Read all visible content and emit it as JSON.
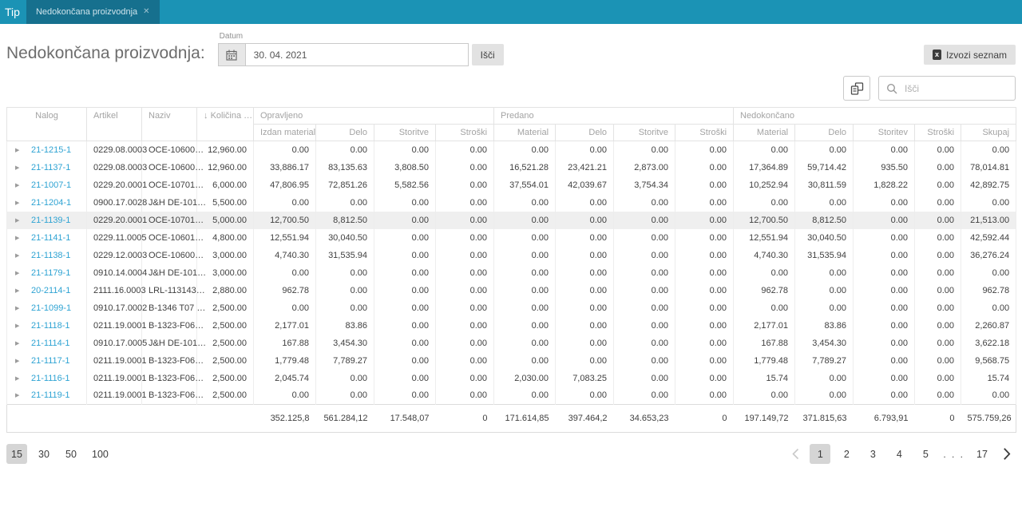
{
  "topbar": {
    "app_name": "Tip",
    "tab": {
      "label": "Nedokončana proizvodnja",
      "close_icon": "✕"
    }
  },
  "header": {
    "title": "Nedokončana proizvodnja:",
    "date_label": "Datum",
    "date_value": "30. 04. 2021",
    "search_button_label": "Išči",
    "export_button_label": "Izvozi seznam",
    "export_icon": "x"
  },
  "toolbar": {
    "search_placeholder": "Išči",
    "column_chooser_icon": "column-chooser-icon",
    "search_icon": "magnifier-icon"
  },
  "table": {
    "fixed_columns": [
      {
        "label": "Nalog"
      },
      {
        "label": "Artikel"
      },
      {
        "label": "Naziv"
      },
      {
        "label": "Količina …",
        "sort_icon": "↓"
      }
    ],
    "groups": [
      {
        "label": "Opravljeno",
        "columns": [
          "Izdan material",
          "Delo",
          "Storitve",
          "Stroški"
        ]
      },
      {
        "label": "Predano",
        "columns": [
          "Material",
          "Delo",
          "Storitve",
          "Stroški"
        ]
      },
      {
        "label": "Nedokončano",
        "columns": [
          "Material",
          "Delo",
          "Storitev",
          "Stroški",
          "Skupaj"
        ]
      }
    ],
    "expand_icon": "▶",
    "rows": [
      {
        "nalog": "21-1215-1",
        "artikel": "0229.08.0003",
        "naziv": "OCE-10600…",
        "kolicina": "12,960.00",
        "highlighted": false,
        "values": [
          "0.00",
          "0.00",
          "0.00",
          "0.00",
          "0.00",
          "0.00",
          "0.00",
          "0.00",
          "0.00",
          "0.00",
          "0.00",
          "0.00",
          "0.00"
        ]
      },
      {
        "nalog": "21-1137-1",
        "artikel": "0229.08.0003",
        "naziv": "OCE-10600…",
        "kolicina": "12,960.00",
        "highlighted": false,
        "values": [
          "33,886.17",
          "83,135.63",
          "3,808.50",
          "0.00",
          "16,521.28",
          "23,421.21",
          "2,873.00",
          "0.00",
          "17,364.89",
          "59,714.42",
          "935.50",
          "0.00",
          "78,014.81"
        ]
      },
      {
        "nalog": "21-1007-1",
        "artikel": "0229.20.0001",
        "naziv": "OCE-10701…",
        "kolicina": "6,000.00",
        "highlighted": false,
        "values": [
          "47,806.95",
          "72,851.26",
          "5,582.56",
          "0.00",
          "37,554.01",
          "42,039.67",
          "3,754.34",
          "0.00",
          "10,252.94",
          "30,811.59",
          "1,828.22",
          "0.00",
          "42,892.75"
        ]
      },
      {
        "nalog": "21-1204-1",
        "artikel": "0900.17.0028",
        "naziv": "J&H DE-101…",
        "kolicina": "5,500.00",
        "highlighted": false,
        "values": [
          "0.00",
          "0.00",
          "0.00",
          "0.00",
          "0.00",
          "0.00",
          "0.00",
          "0.00",
          "0.00",
          "0.00",
          "0.00",
          "0.00",
          "0.00"
        ]
      },
      {
        "nalog": "21-1139-1",
        "artikel": "0229.20.0001",
        "naziv": "OCE-10701…",
        "kolicina": "5,000.00",
        "highlighted": true,
        "values": [
          "12,700.50",
          "8,812.50",
          "0.00",
          "0.00",
          "0.00",
          "0.00",
          "0.00",
          "0.00",
          "12,700.50",
          "8,812.50",
          "0.00",
          "0.00",
          "21,513.00"
        ]
      },
      {
        "nalog": "21-1141-1",
        "artikel": "0229.11.0005",
        "naziv": "OCE-10601…",
        "kolicina": "4,800.00",
        "highlighted": false,
        "values": [
          "12,551.94",
          "30,040.50",
          "0.00",
          "0.00",
          "0.00",
          "0.00",
          "0.00",
          "0.00",
          "12,551.94",
          "30,040.50",
          "0.00",
          "0.00",
          "42,592.44"
        ]
      },
      {
        "nalog": "21-1138-1",
        "artikel": "0229.12.0003",
        "naziv": "OCE-10600…",
        "kolicina": "3,000.00",
        "highlighted": false,
        "values": [
          "4,740.30",
          "31,535.94",
          "0.00",
          "0.00",
          "0.00",
          "0.00",
          "0.00",
          "0.00",
          "4,740.30",
          "31,535.94",
          "0.00",
          "0.00",
          "36,276.24"
        ]
      },
      {
        "nalog": "21-1179-1",
        "artikel": "0910.14.0004",
        "naziv": "J&H DE-101…",
        "kolicina": "3,000.00",
        "highlighted": false,
        "values": [
          "0.00",
          "0.00",
          "0.00",
          "0.00",
          "0.00",
          "0.00",
          "0.00",
          "0.00",
          "0.00",
          "0.00",
          "0.00",
          "0.00",
          "0.00"
        ]
      },
      {
        "nalog": "20-2114-1",
        "artikel": "2111.16.0003",
        "naziv": "LRL-113143…",
        "kolicina": "2,880.00",
        "highlighted": false,
        "values": [
          "962.78",
          "0.00",
          "0.00",
          "0.00",
          "0.00",
          "0.00",
          "0.00",
          "0.00",
          "962.78",
          "0.00",
          "0.00",
          "0.00",
          "962.78"
        ]
      },
      {
        "nalog": "21-1099-1",
        "artikel": "0910.17.0002",
        "naziv": "B-1346 T07 …",
        "kolicina": "2,500.00",
        "highlighted": false,
        "values": [
          "0.00",
          "0.00",
          "0.00",
          "0.00",
          "0.00",
          "0.00",
          "0.00",
          "0.00",
          "0.00",
          "0.00",
          "0.00",
          "0.00",
          "0.00"
        ]
      },
      {
        "nalog": "21-1118-1",
        "artikel": "0211.19.0001",
        "naziv": "B-1323-F06…",
        "kolicina": "2,500.00",
        "highlighted": false,
        "values": [
          "2,177.01",
          "83.86",
          "0.00",
          "0.00",
          "0.00",
          "0.00",
          "0.00",
          "0.00",
          "2,177.01",
          "83.86",
          "0.00",
          "0.00",
          "2,260.87"
        ]
      },
      {
        "nalog": "21-1114-1",
        "artikel": "0910.17.0005",
        "naziv": "J&H DE-101…",
        "kolicina": "2,500.00",
        "highlighted": false,
        "values": [
          "167.88",
          "3,454.30",
          "0.00",
          "0.00",
          "0.00",
          "0.00",
          "0.00",
          "0.00",
          "167.88",
          "3,454.30",
          "0.00",
          "0.00",
          "3,622.18"
        ]
      },
      {
        "nalog": "21-1117-1",
        "artikel": "0211.19.0001",
        "naziv": "B-1323-F06…",
        "kolicina": "2,500.00",
        "highlighted": false,
        "values": [
          "1,779.48",
          "7,789.27",
          "0.00",
          "0.00",
          "0.00",
          "0.00",
          "0.00",
          "0.00",
          "1,779.48",
          "7,789.27",
          "0.00",
          "0.00",
          "9,568.75"
        ]
      },
      {
        "nalog": "21-1116-1",
        "artikel": "0211.19.0001",
        "naziv": "B-1323-F06…",
        "kolicina": "2,500.00",
        "highlighted": false,
        "values": [
          "2,045.74",
          "0.00",
          "0.00",
          "0.00",
          "2,030.00",
          "7,083.25",
          "0.00",
          "0.00",
          "15.74",
          "0.00",
          "0.00",
          "0.00",
          "15.74"
        ]
      },
      {
        "nalog": "21-1119-1",
        "artikel": "0211.19.0001",
        "naziv": "B-1323-F06…",
        "kolicina": "2,500.00",
        "highlighted": false,
        "values": [
          "0.00",
          "0.00",
          "0.00",
          "0.00",
          "0.00",
          "0.00",
          "0.00",
          "0.00",
          "0.00",
          "0.00",
          "0.00",
          "0.00",
          "0.00"
        ]
      }
    ],
    "totals": [
      "352.125,8",
      "561.284,12",
      "17.548,07",
      "0",
      "171.614,85",
      "397.464,2",
      "34.653,23",
      "0",
      "197.149,72",
      "371.815,63",
      "6.793,91",
      "0",
      "575.759,26"
    ]
  },
  "pagination": {
    "page_sizes": [
      "15",
      "30",
      "50",
      "100"
    ],
    "selected_size": "15",
    "pages": [
      "1",
      "2",
      "3",
      "4",
      "5",
      "…",
      "17"
    ],
    "current_page": "1",
    "prev_icon": "chevron-left-icon",
    "next_icon": "chevron-right-icon"
  },
  "colors": {
    "topbar": "#1b93b5",
    "active_tab": "#16708e",
    "link": "#2ea3d3",
    "highlight_row": "#efefef",
    "selected_pill": "#d5d5d5"
  }
}
